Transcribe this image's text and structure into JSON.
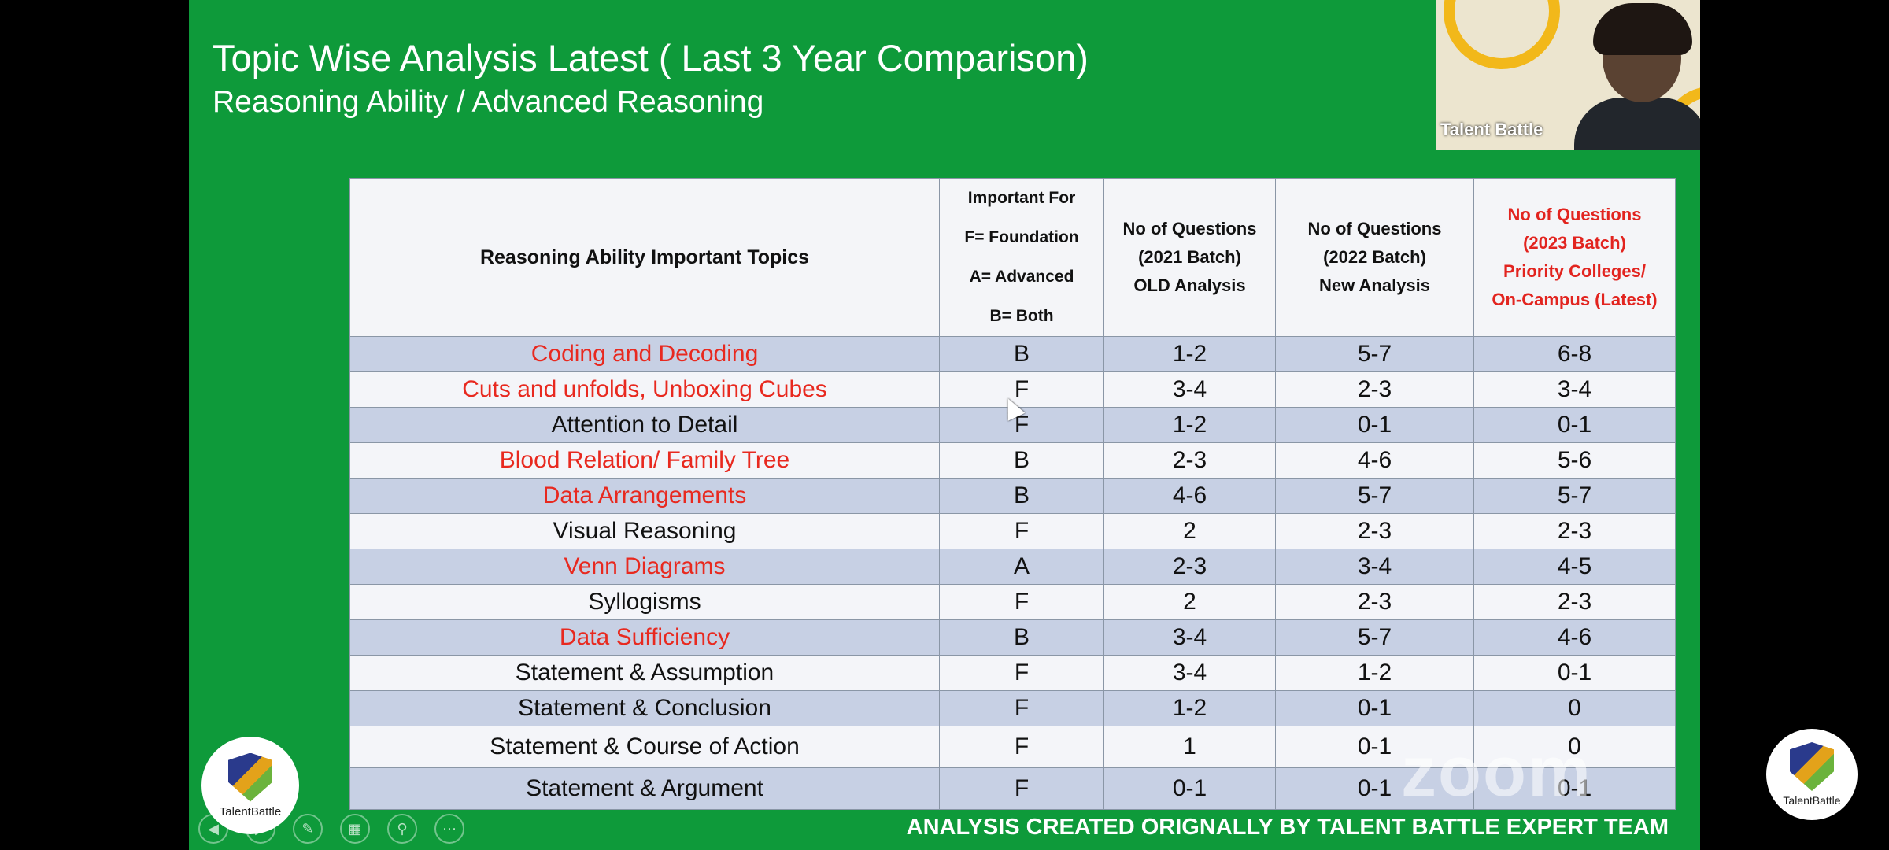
{
  "slide": {
    "title": "Topic Wise Analysis Latest ( Last 3 Year Comparison)",
    "subtitle": "Reasoning Ability / Advanced Reasoning",
    "footer": "ANALYSIS CREATED ORIGNALLY BY TALENT BATTLE EXPERT TEAM",
    "logo_text": "TalentBattle"
  },
  "table": {
    "headers": {
      "topic": "Reasoning Ability Important Topics",
      "important": [
        "Important For",
        "F= Foundation",
        "A= Advanced",
        "B= Both"
      ],
      "batch2021": [
        "No of Questions",
        "(2021 Batch)",
        "OLD Analysis"
      ],
      "batch2022": [
        "No of Questions",
        "(2022 Batch)",
        "New Analysis"
      ],
      "batch2023": [
        "No of Questions",
        "(2023 Batch)",
        "Priority Colleges/",
        "On-Campus (Latest)"
      ]
    },
    "rows": [
      {
        "topic": "Coding and Decoding",
        "imp": "B",
        "q2021": "1-2",
        "q2022": "5-7",
        "q2023": "6-8"
      },
      {
        "topic": "Cuts and unfolds, Unboxing Cubes",
        "imp": "F",
        "q2021": "3-4",
        "q2022": "2-3",
        "q2023": "3-4"
      },
      {
        "topic": "Attention to Detail",
        "imp": "F",
        "q2021": "1-2",
        "q2022": "0-1",
        "q2023": "0-1"
      },
      {
        "topic": "Blood Relation/ Family Tree",
        "imp": "B",
        "q2021": "2-3",
        "q2022": "4-6",
        "q2023": "5-6"
      },
      {
        "topic": "Data Arrangements",
        "imp": "B",
        "q2021": "4-6",
        "q2022": "5-7",
        "q2023": "5-7"
      },
      {
        "topic": "Visual Reasoning",
        "imp": "F",
        "q2021": "2",
        "q2022": "2-3",
        "q2023": "2-3"
      },
      {
        "topic": "Venn Diagrams",
        "imp": "A",
        "q2021": "2-3",
        "q2022": "3-4",
        "q2023": "4-5"
      },
      {
        "topic": "Syllogisms",
        "imp": "F",
        "q2021": "2",
        "q2022": "2-3",
        "q2023": "2-3"
      },
      {
        "topic": "Data Sufficiency",
        "imp": "B",
        "q2021": "3-4",
        "q2022": "5-7",
        "q2023": "4-6"
      },
      {
        "topic": "Statement & Assumption",
        "imp": "F",
        "q2021": "3-4",
        "q2022": "1-2",
        "q2023": "0-1"
      },
      {
        "topic": "Statement & Conclusion",
        "imp": "F",
        "q2021": "1-2",
        "q2022": "0-1",
        "q2023": "0"
      },
      {
        "topic": "Statement & Course of Action",
        "imp": "F",
        "q2021": "1",
        "q2022": "0-1",
        "q2023": "0"
      },
      {
        "topic": "Statement & Argument",
        "imp": "F",
        "q2021": "0-1",
        "q2022": "0-1",
        "q2023": "0-1"
      }
    ]
  },
  "video": {
    "name": "Talent Battle"
  },
  "overlay": {
    "zoom_watermark": "zoom",
    "right_logo_text": "TalentBattle"
  }
}
